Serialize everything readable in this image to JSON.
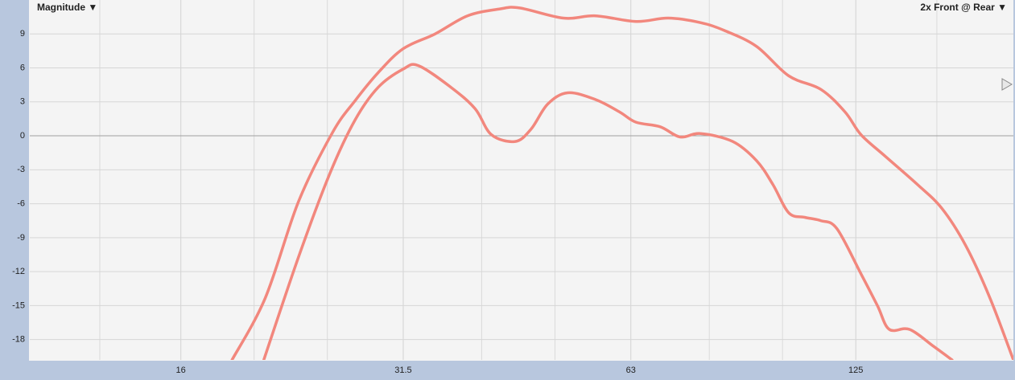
{
  "chart_data": {
    "type": "line",
    "title": "Magnitude ▼",
    "right_label": "2x Front @ Rear ▼",
    "xscale": "log",
    "xlim": [
      10.1,
      202
    ],
    "xticks": [
      16,
      31.5,
      63,
      125
    ],
    "xminor_ticks": [
      12.5,
      20,
      25,
      40,
      50,
      80,
      100,
      160
    ],
    "ylim": [
      -19.8,
      12
    ],
    "yticks": [
      9,
      6,
      3,
      0,
      -3,
      -6,
      -9,
      -12,
      -15,
      -18
    ],
    "grid": true,
    "series": [
      {
        "color": "#f2877d",
        "x": [
          18.7,
          20.7,
          22.9,
          25.4,
          27.2,
          29.2,
          31.5,
          34.7,
          38.3,
          42.2,
          44.9,
          51.3,
          56.6,
          64.0,
          70.6,
          77.9,
          83.8,
          92.4,
          101.9,
          112.4,
          121.0,
          127.0,
          136.7,
          150.8,
          162.4,
          174.7,
          188.0,
          202
        ],
        "values": [
          -19.8,
          -14.3,
          -5.8,
          0.3,
          3.1,
          5.6,
          7.7,
          9.0,
          10.6,
          11.2,
          11.3,
          10.4,
          10.6,
          10.1,
          10.4,
          10.0,
          9.3,
          7.9,
          5.3,
          4.1,
          2.1,
          0.1,
          -1.8,
          -4.3,
          -6.4,
          -9.7,
          -14.3,
          -19.8
        ]
      },
      {
        "color": "#f2877d",
        "x": [
          20.6,
          22.9,
          25.2,
          27.2,
          29.2,
          31.5,
          33.0,
          36.4,
          39.2,
          41.2,
          44.3,
          46.5,
          48.9,
          52.0,
          56.6,
          60.9,
          64.0,
          68.9,
          73.2,
          77.9,
          85.9,
          92.4,
          97.1,
          101.9,
          107.0,
          112.4,
          118.0,
          127.0,
          133.5,
          138.4,
          147.2,
          158.4,
          167.6
        ],
        "values": [
          -19.8,
          -10.7,
          -3.3,
          1.4,
          4.3,
          5.9,
          6.2,
          4.3,
          2.4,
          0.1,
          -0.5,
          0.6,
          2.8,
          3.8,
          3.2,
          2.1,
          1.2,
          0.8,
          -0.1,
          0.2,
          -0.5,
          -2.2,
          -4.3,
          -6.8,
          -7.2,
          -7.5,
          -8.2,
          -12.2,
          -15.0,
          -17.1,
          -17.1,
          -18.6,
          -19.8
        ]
      }
    ]
  }
}
